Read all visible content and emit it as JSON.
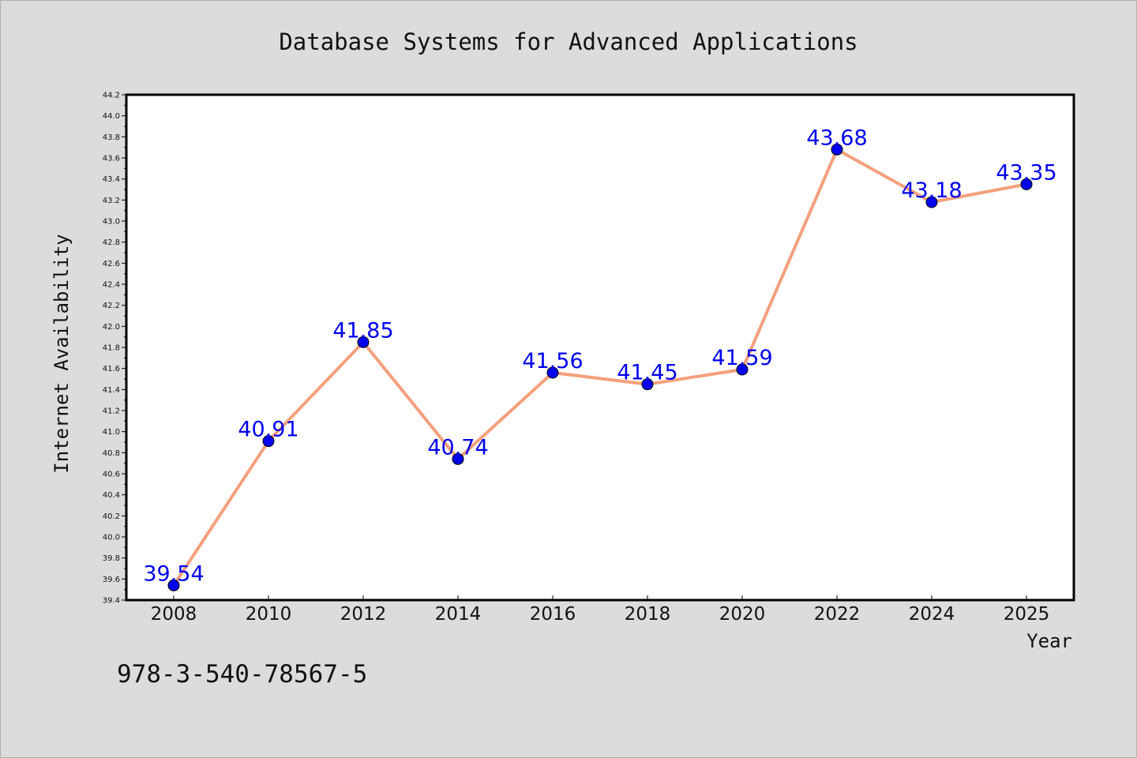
{
  "chart_data": {
    "type": "line",
    "title": "Database Systems for Advanced Applications",
    "xlabel": "Year",
    "ylabel": "Internet Availability",
    "categories": [
      "2008",
      "2010",
      "2012",
      "2014",
      "2016",
      "2018",
      "2020",
      "2022",
      "2024",
      "2025"
    ],
    "series": [
      {
        "values": [
          39.54,
          40.91,
          41.85,
          40.74,
          41.56,
          41.45,
          41.59,
          43.68,
          43.18,
          43.35
        ]
      }
    ],
    "data_labels": [
      "39.54",
      "40.91",
      "41.85",
      "40.74",
      "41.56",
      "41.45",
      "41.59",
      "43.68",
      "43.18",
      "43.35"
    ],
    "ylim": [
      39.4,
      44.2
    ],
    "yticks": [
      "39.4",
      "39.6",
      "39.8",
      "40.0",
      "40.2",
      "40.4",
      "40.6",
      "40.8",
      "41.0",
      "41.2",
      "41.4",
      "41.6",
      "41.8",
      "42.0",
      "42.2",
      "42.4",
      "42.6",
      "42.8",
      "43.0",
      "43.2",
      "43.4",
      "43.6",
      "43.8",
      "44.0",
      "44.2"
    ],
    "grid": false,
    "colors": {
      "line": "#f4a07c",
      "marker": "#0000ee",
      "label": "#0000ee",
      "plot_bg": "#ffffff",
      "figure_bg": "#dcdcdc"
    }
  },
  "footnote": "978-3-540-78567-5"
}
